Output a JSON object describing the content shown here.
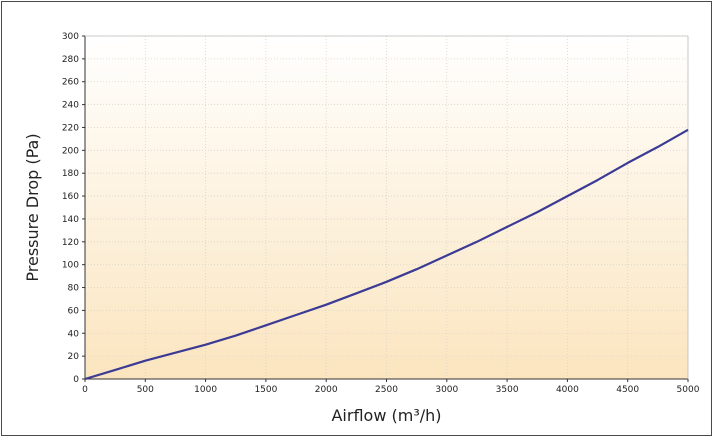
{
  "chart_data": {
    "type": "line",
    "xlabel": "Airflow (m³/h)",
    "ylabel": "Pressure Drop (Pa)",
    "xlim": [
      0,
      5000
    ],
    "ylim": [
      0,
      300
    ],
    "x_ticks": [
      "0",
      "500",
      "1000",
      "1500",
      "2000",
      "2500",
      "3000",
      "3500",
      "4000",
      "4500",
      "5000"
    ],
    "y_ticks": [
      "0",
      "20",
      "40",
      "60",
      "80",
      "100",
      "120",
      "140",
      "160",
      "180",
      "200",
      "220",
      "240",
      "260",
      "280",
      "300"
    ],
    "grid": true,
    "series": [
      {
        "color": "#3b3b96",
        "x": [
          0,
          250,
          500,
          750,
          1000,
          1250,
          1500,
          1750,
          2000,
          2250,
          2500,
          2750,
          3000,
          3250,
          3500,
          3750,
          4000,
          4250,
          4500,
          4750,
          5000
        ],
        "y": [
          0,
          8,
          16,
          23,
          30,
          38,
          47,
          56,
          65,
          75,
          85,
          96,
          108,
          120,
          133,
          146,
          160,
          174,
          189,
          203,
          218
        ]
      }
    ]
  },
  "colors": {
    "background_top": "#ffffff",
    "background_bottom": "#fbe5bf",
    "grid": "#d9d4c8",
    "line": "#3b3b96"
  }
}
